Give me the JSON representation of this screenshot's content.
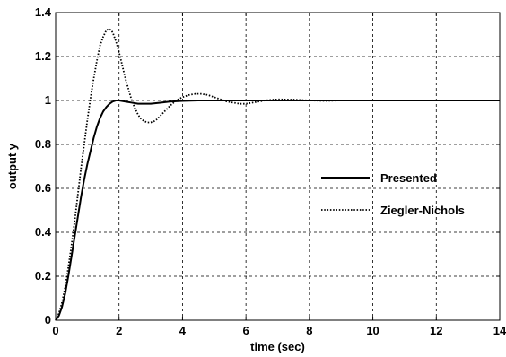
{
  "chart_data": {
    "type": "line",
    "title": "",
    "xlabel": "time (sec)",
    "ylabel": "output y",
    "xlim": [
      0,
      14
    ],
    "ylim": [
      0,
      1.4
    ],
    "xticks": [
      "0",
      "2",
      "4",
      "6",
      "8",
      "10",
      "12",
      "14"
    ],
    "yticks": [
      "0",
      "0.2",
      "0.4",
      "0.6",
      "0.8",
      "1",
      "1.2",
      "1.4"
    ],
    "grid": true,
    "legend_position": "right",
    "series": [
      {
        "name": "Presented",
        "style": "solid",
        "color": "#000000",
        "x": [
          0,
          0.1,
          0.2,
          0.3,
          0.4,
          0.5,
          0.6,
          0.7,
          0.8,
          0.9,
          1.0,
          1.1,
          1.2,
          1.3,
          1.4,
          1.5,
          1.6,
          1.7,
          1.8,
          1.9,
          2.0,
          2.2,
          2.4,
          2.6,
          2.8,
          3.0,
          3.3,
          3.6,
          4.0,
          4.5,
          5.0,
          6.0,
          8.0,
          10.0,
          12.0,
          14.0
        ],
        "y": [
          0,
          0.02,
          0.06,
          0.12,
          0.2,
          0.29,
          0.38,
          0.47,
          0.56,
          0.64,
          0.71,
          0.77,
          0.83,
          0.88,
          0.92,
          0.95,
          0.97,
          0.985,
          0.995,
          1.0,
          1.0,
          0.995,
          0.99,
          0.985,
          0.985,
          0.985,
          0.99,
          0.995,
          0.998,
          1.0,
          1.0,
          1.0,
          1.0,
          1.0,
          1.0,
          1.0
        ]
      },
      {
        "name": "Ziegler-Nichols",
        "style": "dotted",
        "color": "#000000",
        "x": [
          0,
          0.1,
          0.2,
          0.3,
          0.4,
          0.5,
          0.6,
          0.7,
          0.8,
          0.9,
          1.0,
          1.1,
          1.2,
          1.3,
          1.4,
          1.5,
          1.6,
          1.7,
          1.8,
          1.9,
          2.0,
          2.1,
          2.2,
          2.3,
          2.4,
          2.5,
          2.6,
          2.7,
          2.8,
          2.9,
          3.0,
          3.1,
          3.2,
          3.3,
          3.4,
          3.6,
          3.8,
          4.0,
          4.2,
          4.4,
          4.6,
          4.8,
          5.0,
          5.2,
          5.4,
          5.6,
          5.8,
          6.0,
          6.2,
          6.4,
          6.6,
          6.8,
          7.0,
          7.5,
          8.0,
          8.5,
          9.0,
          10.0,
          12.0,
          14.0
        ],
        "y": [
          0,
          0.03,
          0.08,
          0.15,
          0.24,
          0.34,
          0.45,
          0.57,
          0.69,
          0.8,
          0.91,
          1.01,
          1.1,
          1.18,
          1.25,
          1.29,
          1.32,
          1.325,
          1.31,
          1.27,
          1.22,
          1.16,
          1.1,
          1.05,
          1.0,
          0.965,
          0.935,
          0.915,
          0.905,
          0.9,
          0.9,
          0.905,
          0.915,
          0.93,
          0.945,
          0.975,
          1.0,
          1.015,
          1.025,
          1.03,
          1.03,
          1.025,
          1.015,
          1.005,
          0.995,
          0.99,
          0.985,
          0.985,
          0.99,
          0.995,
          1.0,
          1.003,
          1.005,
          1.004,
          1.0,
          0.998,
          1.0,
          1.0,
          1.0,
          1.0
        ]
      }
    ]
  }
}
